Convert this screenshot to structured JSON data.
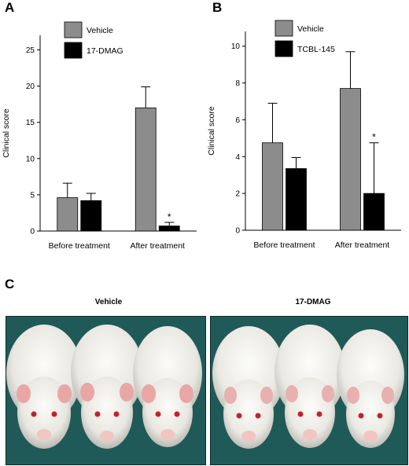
{
  "panels": {
    "a_letter": "A",
    "b_letter": "B",
    "c_letter": "C"
  },
  "chart_data": [
    {
      "type": "bar",
      "ylabel": "Clinical score",
      "ylim": [
        0,
        27
      ],
      "yticks": [
        0,
        5,
        10,
        15,
        20,
        25
      ],
      "categories": [
        "Before treatment",
        "After treatment"
      ],
      "series": [
        {
          "name": "Vehicle",
          "color": "#8c8c8c",
          "values": [
            4.6,
            17.0
          ],
          "errors": [
            2.0,
            2.9
          ]
        },
        {
          "name": "17-DMAG",
          "color": "#000000",
          "values": [
            4.2,
            0.7
          ],
          "errors": [
            1.0,
            0.5
          ]
        }
      ],
      "annotations": [
        {
          "text": "*",
          "category": 1,
          "series": 1
        }
      ],
      "legend": "top-center"
    },
    {
      "type": "bar",
      "ylabel": "Clinical score",
      "ylim": [
        0,
        10.8
      ],
      "yticks": [
        0,
        2,
        4,
        6,
        8,
        10
      ],
      "categories": [
        "Before treatment",
        "After treatment"
      ],
      "series": [
        {
          "name": "Vehicle",
          "color": "#8c8c8c",
          "values": [
            4.75,
            7.7
          ],
          "errors": [
            2.15,
            2.0
          ]
        },
        {
          "name": "TCBL-145",
          "color": "#000000",
          "values": [
            3.35,
            2.0
          ],
          "errors": [
            0.6,
            2.75
          ]
        }
      ],
      "annotations": [
        {
          "text": "*",
          "category": 1,
          "series": 1
        }
      ],
      "legend": "top-center"
    }
  ],
  "photos": [
    {
      "title": "Vehicle",
      "mice": 3,
      "background": "#1f5a58"
    },
    {
      "title": "17-DMAG",
      "mice": 3,
      "background": "#1f5a58"
    }
  ]
}
